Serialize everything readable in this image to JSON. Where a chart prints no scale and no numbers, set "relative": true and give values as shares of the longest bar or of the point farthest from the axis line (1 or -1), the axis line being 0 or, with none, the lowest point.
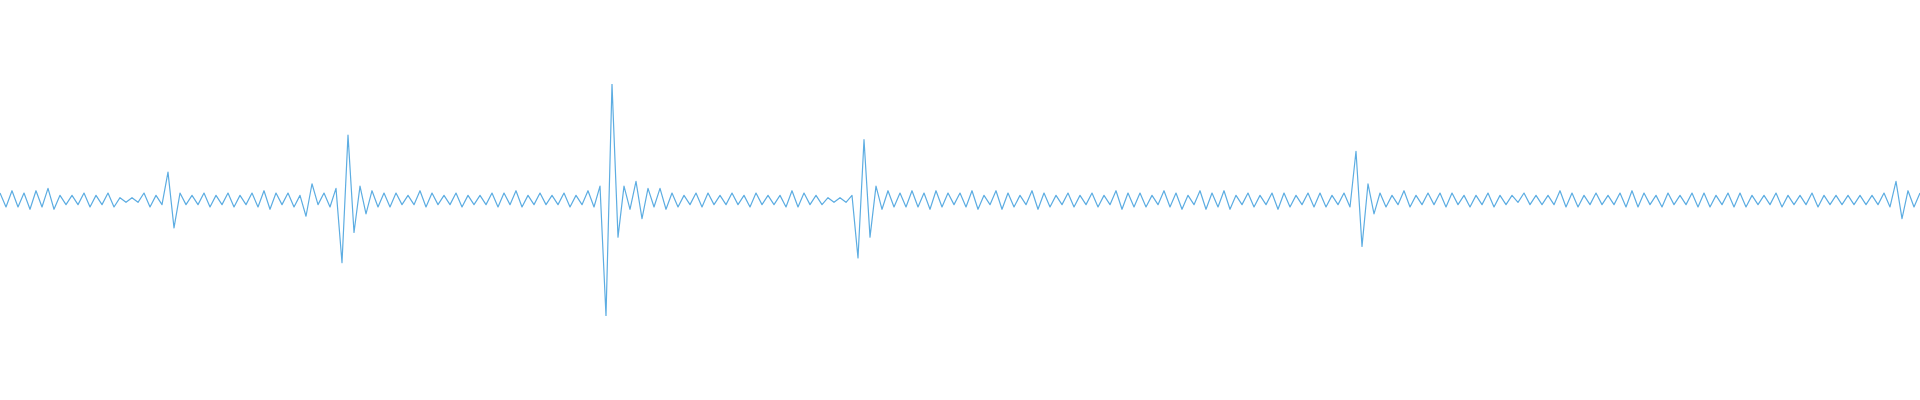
{
  "chart_data": {
    "type": "line",
    "relative": true,
    "color": "#5dade2",
    "categories": [
      null,
      null,
      null,
      null,
      null,
      null,
      null,
      null,
      null,
      null,
      null,
      null,
      null,
      null,
      null,
      null,
      null,
      null,
      null,
      null,
      null,
      null,
      null,
      null,
      null,
      null,
      null,
      null,
      null,
      null,
      null,
      null,
      null,
      null,
      null,
      null,
      null,
      null,
      null,
      null,
      null,
      null,
      null,
      null,
      null,
      null,
      null,
      null,
      null,
      null,
      null,
      null,
      null,
      null,
      null,
      null,
      null,
      null,
      null,
      null,
      null,
      null,
      null,
      null,
      null,
      null,
      null,
      null,
      null,
      null,
      null,
      null,
      null,
      null,
      null,
      null,
      null,
      null,
      null,
      null,
      null,
      null,
      null,
      null,
      null,
      null,
      null,
      null,
      null,
      null,
      null,
      null,
      null,
      null,
      null,
      null,
      null,
      null,
      null,
      null,
      null,
      null,
      null,
      null,
      null,
      null,
      null,
      null,
      null,
      null,
      null,
      null,
      null,
      null,
      null,
      null,
      null,
      null,
      null,
      null,
      null,
      null,
      null,
      null,
      null,
      null,
      null,
      null,
      null,
      null,
      null,
      null,
      null,
      null,
      null,
      null,
      null,
      null,
      null,
      null,
      null,
      null,
      null,
      null,
      null,
      null,
      null,
      null,
      null,
      null,
      null,
      null,
      null,
      null,
      null,
      null,
      null,
      null,
      null,
      null,
      null,
      null,
      null,
      null,
      null,
      null,
      null,
      null,
      null,
      null,
      null,
      null,
      null,
      null,
      null,
      null,
      null,
      null,
      null,
      null,
      null,
      null,
      null,
      null,
      null,
      null,
      null,
      null,
      null,
      null,
      null,
      null,
      null,
      null,
      null,
      null,
      null,
      null,
      null,
      null,
      null,
      null,
      null,
      null,
      null,
      null,
      null,
      null,
      null,
      null,
      null,
      null,
      null,
      null,
      null,
      null,
      null,
      null,
      null,
      null,
      null,
      null,
      null,
      null,
      null,
      null,
      null,
      null,
      null,
      null,
      null,
      null,
      null,
      null,
      null,
      null,
      null,
      null,
      null,
      null,
      null,
      null,
      null,
      null,
      null,
      null,
      null,
      null,
      null,
      null,
      null,
      null,
      null,
      null,
      null,
      null,
      null,
      null,
      null,
      null,
      null,
      null,
      null,
      null,
      null,
      null,
      null,
      null,
      null,
      null,
      null,
      null,
      null,
      null,
      null,
      null,
      null,
      null,
      null,
      null,
      null,
      null,
      null,
      null,
      null,
      null,
      null,
      null,
      null,
      null,
      null,
      null,
      null,
      null,
      null,
      null,
      null,
      null,
      null,
      null,
      null,
      null,
      null,
      null,
      null,
      null,
      null,
      null,
      null,
      null,
      null,
      null,
      null,
      null,
      null,
      null,
      null,
      null,
      null,
      null,
      null
    ],
    "values": [
      0.53,
      0.47,
      0.54,
      0.47,
      0.53,
      0.46,
      0.54,
      0.47,
      0.55,
      0.46,
      0.52,
      0.48,
      0.52,
      0.48,
      0.53,
      0.47,
      0.52,
      0.48,
      0.53,
      0.47,
      0.51,
      0.49,
      0.51,
      0.49,
      0.53,
      0.47,
      0.52,
      0.48,
      0.62,
      0.38,
      0.53,
      0.48,
      0.52,
      0.48,
      0.53,
      0.47,
      0.52,
      0.48,
      0.53,
      0.47,
      0.52,
      0.48,
      0.53,
      0.47,
      0.54,
      0.46,
      0.53,
      0.48,
      0.53,
      0.47,
      0.52,
      0.43,
      0.57,
      0.48,
      0.53,
      0.47,
      0.55,
      0.23,
      0.78,
      0.36,
      0.56,
      0.44,
      0.54,
      0.47,
      0.53,
      0.47,
      0.53,
      0.48,
      0.52,
      0.48,
      0.54,
      0.47,
      0.53,
      0.48,
      0.52,
      0.48,
      0.53,
      0.47,
      0.52,
      0.48,
      0.52,
      0.48,
      0.53,
      0.47,
      0.53,
      0.48,
      0.54,
      0.47,
      0.52,
      0.48,
      0.53,
      0.48,
      0.52,
      0.48,
      0.53,
      0.47,
      0.52,
      0.48,
      0.54,
      0.47,
      0.56,
      0,
      1,
      0.34,
      0.56,
      0.46,
      0.58,
      0.42,
      0.55,
      0.47,
      0.55,
      0.46,
      0.53,
      0.47,
      0.52,
      0.48,
      0.53,
      0.47,
      0.53,
      0.48,
      0.52,
      0.48,
      0.53,
      0.48,
      0.52,
      0.47,
      0.53,
      0.48,
      0.52,
      0.48,
      0.52,
      0.47,
      0.54,
      0.47,
      0.53,
      0.48,
      0.52,
      0.48,
      0.51,
      0.49,
      0.51,
      0.49,
      0.52,
      0.25,
      0.76,
      0.34,
      0.56,
      0.46,
      0.54,
      0.47,
      0.53,
      0.47,
      0.54,
      0.47,
      0.53,
      0.46,
      0.54,
      0.47,
      0.53,
      0.48,
      0.53,
      0.47,
      0.54,
      0.46,
      0.52,
      0.48,
      0.54,
      0.46,
      0.53,
      0.47,
      0.52,
      0.48,
      0.54,
      0.46,
      0.53,
      0.47,
      0.52,
      0.48,
      0.53,
      0.47,
      0.52,
      0.48,
      0.53,
      0.47,
      0.52,
      0.48,
      0.54,
      0.46,
      0.53,
      0.47,
      0.53,
      0.47,
      0.52,
      0.48,
      0.54,
      0.47,
      0.53,
      0.46,
      0.52,
      0.48,
      0.54,
      0.46,
      0.53,
      0.47,
      0.54,
      0.46,
      0.52,
      0.48,
      0.53,
      0.47,
      0.52,
      0.48,
      0.53,
      0.46,
      0.53,
      0.47,
      0.52,
      0.48,
      0.53,
      0.47,
      0.53,
      0.47,
      0.52,
      0.48,
      0.53,
      0.47,
      0.71,
      0.3,
      0.57,
      0.44,
      0.53,
      0.47,
      0.52,
      0.48,
      0.54,
      0.47,
      0.52,
      0.48,
      0.53,
      0.48,
      0.53,
      0.47,
      0.53,
      0.48,
      0.52,
      0.47,
      0.52,
      0.48,
      0.53,
      0.47,
      0.52,
      0.48,
      0.52,
      0.49,
      0.53,
      0.48,
      0.52,
      0.48,
      0.52,
      0.48,
      0.54,
      0.47,
      0.53,
      0.47,
      0.52,
      0.48,
      0.53,
      0.48,
      0.52,
      0.48,
      0.53,
      0.47,
      0.54,
      0.47,
      0.53,
      0.48,
      0.52,
      0.47,
      0.53,
      0.48,
      0.52,
      0.48,
      0.53,
      0.47,
      0.53,
      0.47,
      0.52,
      0.48,
      0.53,
      0.47,
      0.53,
      0.47,
      0.52,
      0.48,
      0.52,
      0.48,
      0.53,
      0.47,
      0.52,
      0.48,
      0.52,
      0.48,
      0.53,
      0.47,
      0.52,
      0.48,
      0.52,
      0.48,
      0.52,
      0.48,
      0.52,
      0.48,
      0.52,
      0.48,
      0.53,
      0.47,
      0.58,
      0.42,
      0.54,
      0.47,
      0.53
    ]
  }
}
